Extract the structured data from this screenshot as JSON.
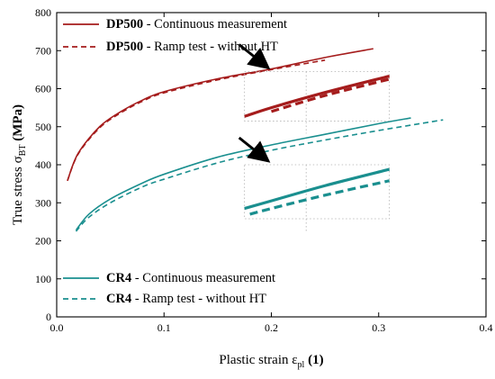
{
  "chart_data": {
    "type": "line",
    "xlabel": {
      "main": "Plastic strain ε",
      "sub": "pl",
      "unit": " (1)"
    },
    "ylabel": {
      "main": "True stress σ",
      "sub": "BT",
      "unit": " (MPa)"
    },
    "xlim": [
      0,
      0.4
    ],
    "ylim": [
      0,
      800
    ],
    "xticks": [
      0,
      0.1,
      0.2,
      0.3,
      0.4
    ],
    "xtick_labels": [
      "0.0",
      "0.1",
      "0.2",
      "0.3",
      "0.4"
    ],
    "yticks": [
      0,
      100,
      200,
      300,
      400,
      500,
      600,
      700,
      800
    ],
    "ytick_labels": [
      "0",
      "100",
      "200",
      "300",
      "400",
      "500",
      "600",
      "700",
      "800"
    ],
    "grid": false,
    "legend_positions": [
      "top-left",
      "bottom-left"
    ],
    "series": [
      {
        "name": "DP500 - Continuous measurement",
        "legend_bold": "DP500",
        "legend_rest": " - Continuous measurement",
        "color": "#a51c1c",
        "dash": "solid",
        "x": [
          0.01,
          0.02,
          0.04,
          0.06,
          0.08,
          0.1,
          0.15,
          0.2,
          0.25,
          0.295
        ],
        "y": [
          358,
          430,
          500,
          540,
          570,
          592,
          626,
          652,
          682,
          705
        ]
      },
      {
        "name": "DP500 - Ramp test - without HT",
        "legend_bold": "DP500",
        "legend_rest": " - Ramp test - without HT",
        "color": "#a51c1c",
        "dash": "dashed",
        "x": [
          0.01,
          0.02,
          0.04,
          0.06,
          0.08,
          0.1,
          0.15,
          0.2,
          0.25
        ],
        "y": [
          358,
          428,
          497,
          537,
          567,
          589,
          623,
          650,
          675
        ]
      },
      {
        "name": "CR4 - Continuous measurement",
        "legend_bold": "CR4",
        "legend_rest": " - Continuous measurement",
        "color": "#1a8f8f",
        "dash": "solid",
        "x": [
          0.018,
          0.03,
          0.05,
          0.08,
          0.1,
          0.15,
          0.2,
          0.25,
          0.3,
          0.33
        ],
        "y": [
          228,
          270,
          310,
          352,
          375,
          420,
          452,
          480,
          508,
          523
        ]
      },
      {
        "name": "CR4 - Ramp test - without HT",
        "legend_bold": "CR4",
        "legend_rest": " - Ramp test - without HT",
        "color": "#1a8f8f",
        "dash": "dashed",
        "x": [
          0.018,
          0.03,
          0.05,
          0.08,
          0.1,
          0.15,
          0.2,
          0.25,
          0.3,
          0.36
        ],
        "y": [
          225,
          262,
          300,
          342,
          362,
          405,
          438,
          465,
          490,
          518
        ]
      }
    ],
    "zoom_insets": [
      {
        "color": "#a51c1c",
        "x_range": [
          0.175,
          0.31
        ],
        "solid": {
          "x": [
            0.175,
            0.2,
            0.25,
            0.31
          ],
          "y": [
            527,
            550,
            590,
            633
          ]
        },
        "dashed": {
          "x": [
            0.2,
            0.25,
            0.31
          ],
          "y": [
            540,
            582,
            625
          ]
        }
      },
      {
        "color": "#1a8f8f",
        "x_range": [
          0.175,
          0.31
        ],
        "solid": {
          "x": [
            0.175,
            0.2,
            0.25,
            0.31
          ],
          "y": [
            285,
            305,
            345,
            388
          ]
        },
        "dashed": {
          "x": [
            0.18,
            0.2,
            0.25,
            0.31
          ],
          "y": [
            270,
            285,
            320,
            358
          ]
        }
      }
    ]
  }
}
